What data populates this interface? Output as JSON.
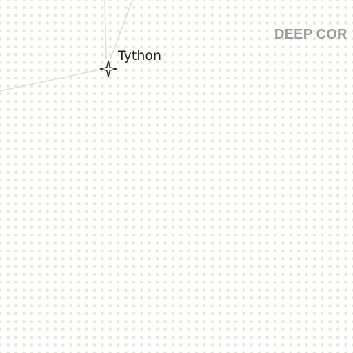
{
  "map": {
    "region_label": "DEEP COR",
    "systems": [
      {
        "name": "Tython",
        "icon": "four-point-star-icon"
      }
    ],
    "colors": {
      "background": "#ffffff",
      "dot_grid": "#e6e6df",
      "route_lines": "#dcdcdc",
      "region_label": "#9b9b9b",
      "system_label": "#222222"
    }
  }
}
